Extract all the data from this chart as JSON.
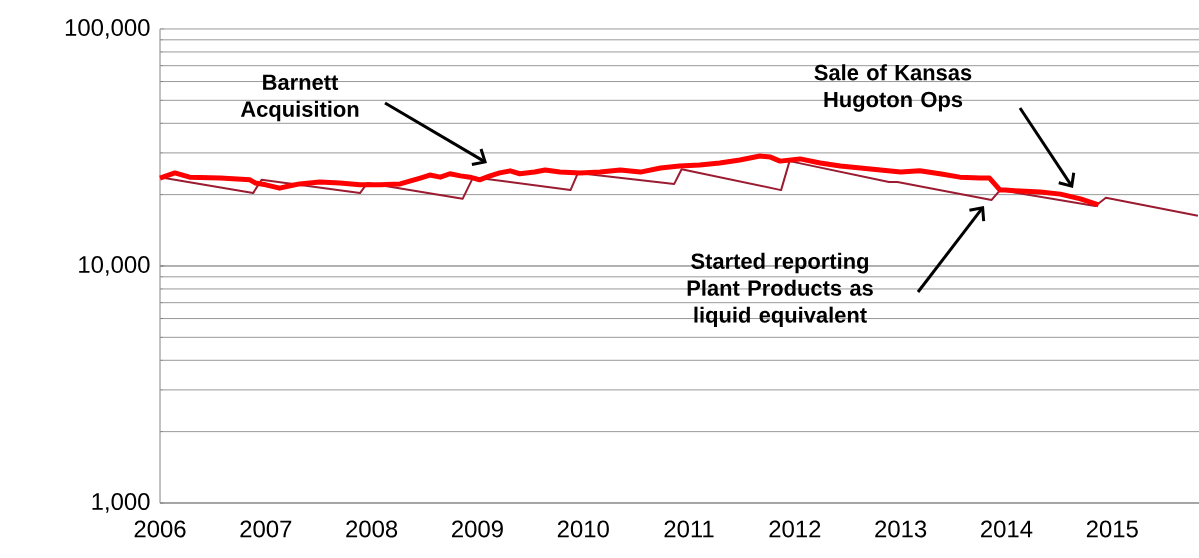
{
  "chart_data": {
    "type": "line",
    "log": "y",
    "grid": "y",
    "xlim": [
      2006,
      2015.82
    ],
    "ylim": [
      1000,
      100000
    ],
    "xticks": [
      2006,
      2007,
      2008,
      2009,
      2010,
      2011,
      2012,
      2013,
      2014,
      2015
    ],
    "yticks": [
      {
        "value": 1000,
        "label": "1,000"
      },
      {
        "value": 10000,
        "label": "10,000"
      },
      {
        "value": 100000,
        "label": "100,000"
      }
    ],
    "series": [
      {
        "color": "#9b1b30",
        "x": [
          2006.0,
          2006.88,
          2006.96,
          2007.89,
          2007.96,
          2008.86,
          2008.96,
          2009.88,
          2009.95,
          2010.86,
          2010.93,
          2011.87,
          2011.95,
          2012.89,
          2012.97,
          2013.86,
          2013.94,
          2014.84,
          2014.94,
          2015.81
        ],
        "values": [
          23700,
          20300,
          23100,
          20300,
          22400,
          19200,
          23700,
          20900,
          24700,
          22200,
          25600,
          20900,
          27700,
          22600,
          22600,
          19000,
          20900,
          17900,
          19400,
          16300
        ]
      },
      {
        "color": "#ff0000",
        "x": [
          2006.0,
          2006.14,
          2006.28,
          2006.57,
          2006.85,
          2006.9,
          2007.0,
          2007.13,
          2007.23,
          2007.32,
          2007.51,
          2007.7,
          2007.89,
          2008.08,
          2008.27,
          2008.36,
          2008.46,
          2008.55,
          2008.65,
          2008.74,
          2008.84,
          2008.93,
          2009.02,
          2009.12,
          2009.21,
          2009.31,
          2009.4,
          2009.54,
          2009.64,
          2009.78,
          2009.97,
          2010.16,
          2010.35,
          2010.54,
          2010.73,
          2010.91,
          2011.1,
          2011.29,
          2011.48,
          2011.67,
          2011.77,
          2011.86,
          2012.05,
          2012.24,
          2012.43,
          2012.62,
          2012.81,
          2013.0,
          2013.18,
          2013.37,
          2013.56,
          2013.75,
          2013.84,
          2013.94,
          2013.99,
          2014.13,
          2014.32,
          2014.51,
          2014.7,
          2014.87
        ],
        "values": [
          23500,
          24700,
          23700,
          23500,
          23100,
          22400,
          22000,
          21300,
          21800,
          22200,
          22600,
          22400,
          22000,
          22000,
          22200,
          22800,
          23500,
          24200,
          23700,
          24500,
          24000,
          23700,
          23100,
          24000,
          24700,
          25200,
          24500,
          24900,
          25400,
          24900,
          24700,
          24900,
          25400,
          24900,
          25900,
          26400,
          26700,
          27200,
          28000,
          29100,
          28800,
          27700,
          28300,
          27200,
          26400,
          25900,
          25400,
          24900,
          25200,
          24500,
          23700,
          23500,
          23500,
          20900,
          20900,
          20700,
          20500,
          20100,
          19200,
          18100
        ]
      }
    ],
    "annotations": [
      "Barnett Acquisition",
      "Sale of Kansas Hugoton Ops",
      "Started reporting Plant Products as liquid equivalent"
    ]
  }
}
